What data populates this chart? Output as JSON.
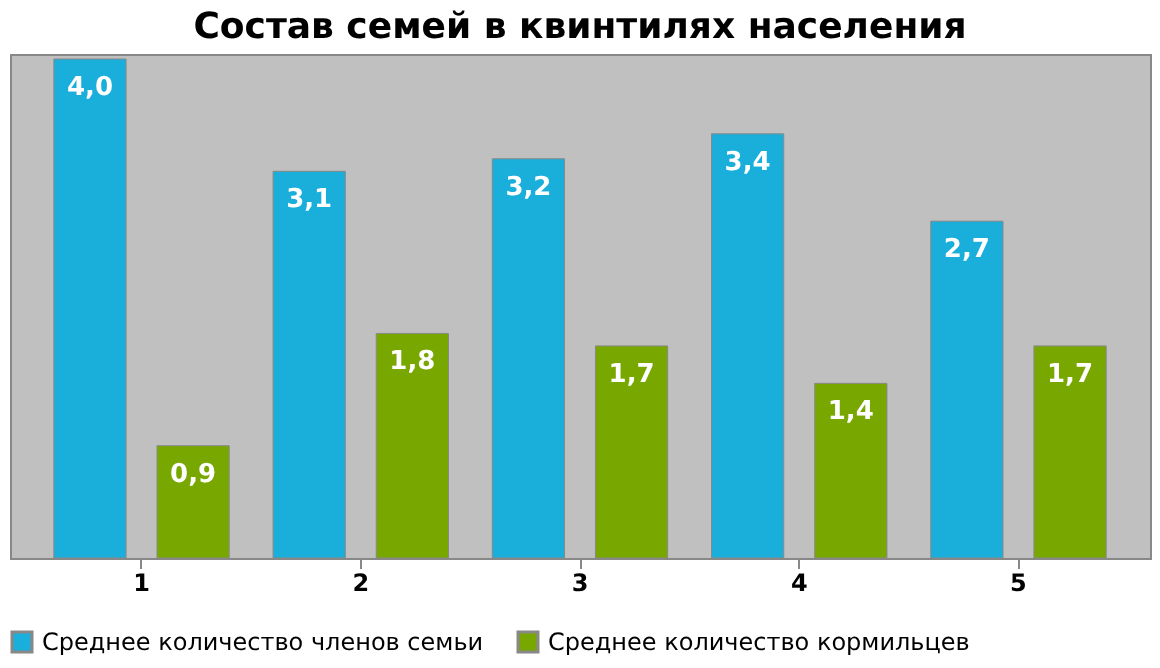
{
  "chart_data": {
    "type": "bar",
    "title": "Состав семей в квинтилях населения",
    "categories": [
      "1",
      "2",
      "3",
      "4",
      "5"
    ],
    "series": [
      {
        "name": "Среднее количество членов семьи",
        "color": "#1aaedb",
        "values": [
          4.0,
          3.1,
          3.2,
          3.4,
          2.7
        ],
        "value_labels": [
          "4,0",
          "3,1",
          "3,2",
          "3,4",
          "2,7"
        ]
      },
      {
        "name": "Среднее количество кормильцев",
        "color": "#78a800",
        "values": [
          0.9,
          1.8,
          1.7,
          1.4,
          1.7
        ],
        "value_labels": [
          "0,9",
          "1,8",
          "1,7",
          "1,4",
          "1,7"
        ]
      }
    ],
    "tick_labels": "x",
    "grid": false,
    "legend": "bottom"
  }
}
